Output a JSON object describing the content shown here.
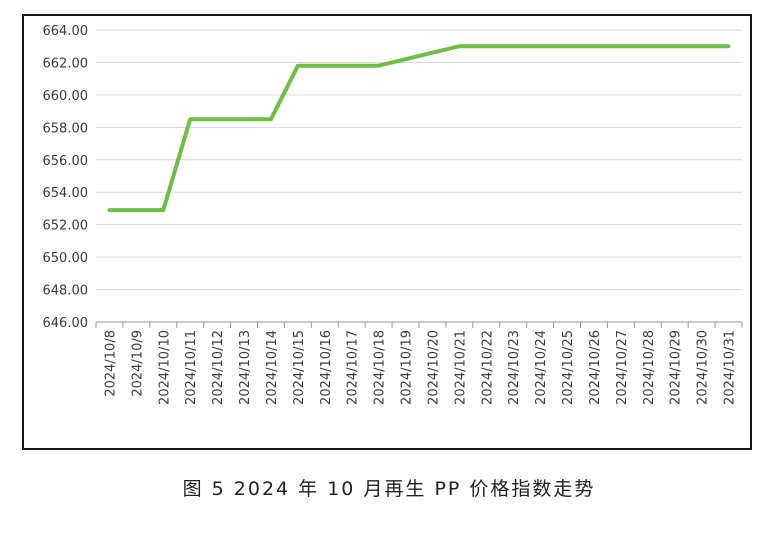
{
  "caption": "图 5  2024 年 10 月再生 PP 价格指数走势",
  "chart_data": {
    "type": "line",
    "title": "",
    "xlabel": "",
    "ylabel": "",
    "ylim": [
      646.0,
      664.0
    ],
    "y_ticks": [
      "646.00",
      "648.00",
      "650.00",
      "652.00",
      "654.00",
      "656.00",
      "658.00",
      "660.00",
      "662.00",
      "664.00"
    ],
    "grid": true,
    "line_color": "#6dbe45",
    "categories": [
      "2024/10/8",
      "2024/10/9",
      "2024/10/10",
      "2024/10/11",
      "2024/10/12",
      "2024/10/13",
      "2024/10/14",
      "2024/10/15",
      "2024/10/16",
      "2024/10/17",
      "2024/10/18",
      "2024/10/19",
      "2024/10/20",
      "2024/10/21",
      "2024/10/22",
      "2024/10/23",
      "2024/10/24",
      "2024/10/25",
      "2024/10/26",
      "2024/10/27",
      "2024/10/28",
      "2024/10/29",
      "2024/10/30",
      "2024/10/31"
    ],
    "values": [
      652.9,
      652.9,
      652.9,
      658.5,
      658.5,
      658.5,
      658.5,
      661.8,
      661.8,
      661.8,
      661.8,
      662.2,
      662.6,
      663.0,
      663.0,
      663.0,
      663.0,
      663.0,
      663.0,
      663.0,
      663.0,
      663.0,
      663.0,
      663.0
    ]
  }
}
